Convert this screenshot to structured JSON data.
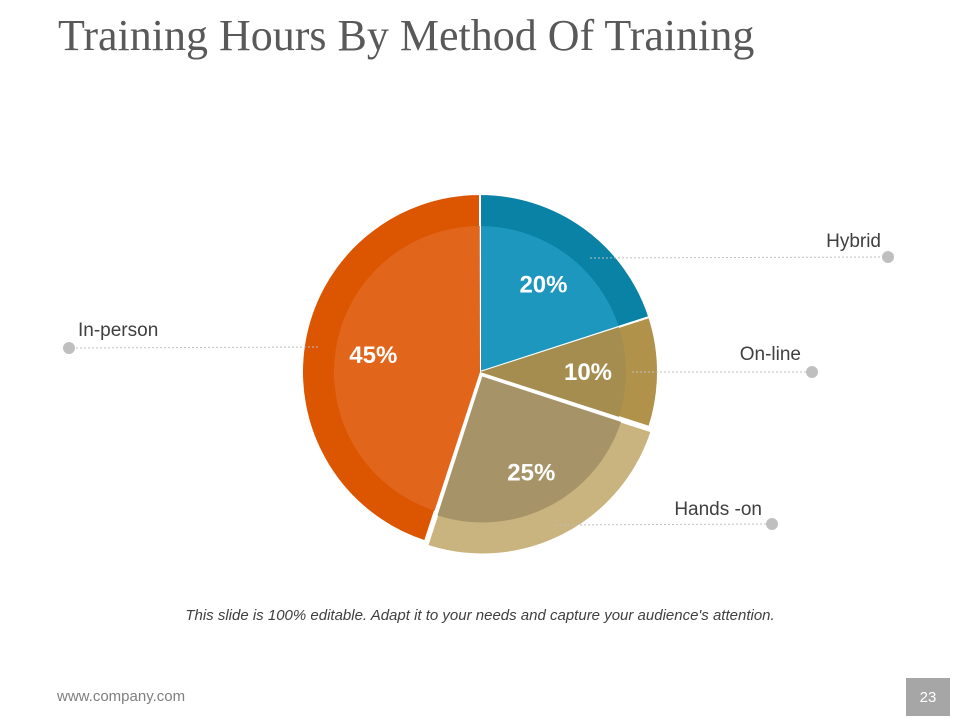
{
  "slide": {
    "title": "Training Hours By Method Of Training",
    "caption": "This slide is 100% editable. Adapt it to your needs and capture your audience's attention.",
    "footer_url": "www.company.com",
    "page_number": "23"
  },
  "chart_data": {
    "type": "pie",
    "title": "Training Hours By Method Of Training",
    "categories": [
      "Hybrid",
      "On-line",
      "Hands -on",
      "In-person"
    ],
    "values": [
      20,
      10,
      25,
      45
    ],
    "value_labels": [
      "20%",
      "10%",
      "25%",
      "45%"
    ],
    "colors_outer": [
      "#0a82a6",
      "#b0924a",
      "#c9b37e",
      "#dc5500"
    ],
    "colors_inner": [
      "#1d97be",
      "#a58d50",
      "#a69368",
      "#e2651c"
    ],
    "label_color": "#ffffff",
    "legend": "callout labels"
  }
}
